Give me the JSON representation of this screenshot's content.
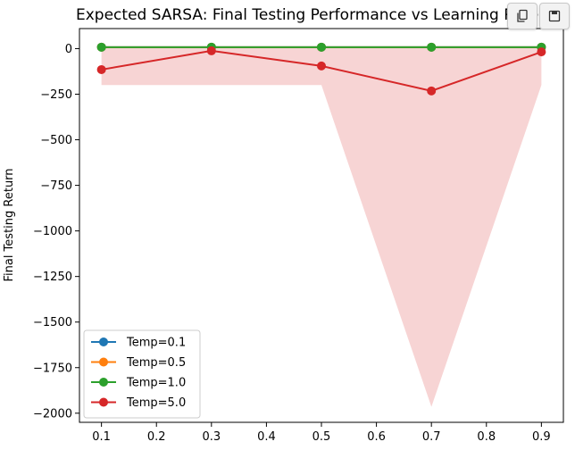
{
  "chart_data": {
    "type": "line",
    "title": "Expected SARSA: Final Testing Performance vs Learning Rate",
    "xlabel": "",
    "ylabel": "Final Testing Return",
    "x": [
      0.1,
      0.3,
      0.5,
      0.7,
      0.9
    ],
    "x_ticks": [
      "0.1",
      "0.2",
      "0.3",
      "0.4",
      "0.5",
      "0.6",
      "0.7",
      "0.8",
      "0.9"
    ],
    "y_ticks": [
      "0",
      "−250",
      "−500",
      "−750",
      "−1000",
      "−1250",
      "−1500",
      "−1750",
      "−2000"
    ],
    "y_tick_values": [
      0,
      -250,
      -500,
      -750,
      -1000,
      -1250,
      -1500,
      -1750,
      -2000
    ],
    "xlim": [
      0.06,
      0.94
    ],
    "ylim": [
      -2050,
      110
    ],
    "grid": false,
    "legend_position": "lower-left",
    "series": [
      {
        "name": "Temp=0.1",
        "color": "#1f77b4",
        "values": [
          8,
          8,
          8,
          8,
          8
        ]
      },
      {
        "name": "Temp=0.5",
        "color": "#ff7f0e",
        "values": [
          8,
          8,
          8,
          8,
          8
        ]
      },
      {
        "name": "Temp=1.0",
        "color": "#2ca02c",
        "values": [
          8,
          8,
          8,
          8,
          8
        ]
      },
      {
        "name": "Temp=5.0",
        "color": "#d62728",
        "values": [
          -115,
          -12,
          -95,
          -232,
          -18
        ],
        "band_lower": [
          -200,
          -200,
          -200,
          -1965,
          -200
        ],
        "band_upper": [
          8,
          8,
          8,
          8,
          8
        ]
      }
    ]
  },
  "toolbar": {
    "copy_icon": "copy-icon",
    "save_icon": "save-icon"
  }
}
